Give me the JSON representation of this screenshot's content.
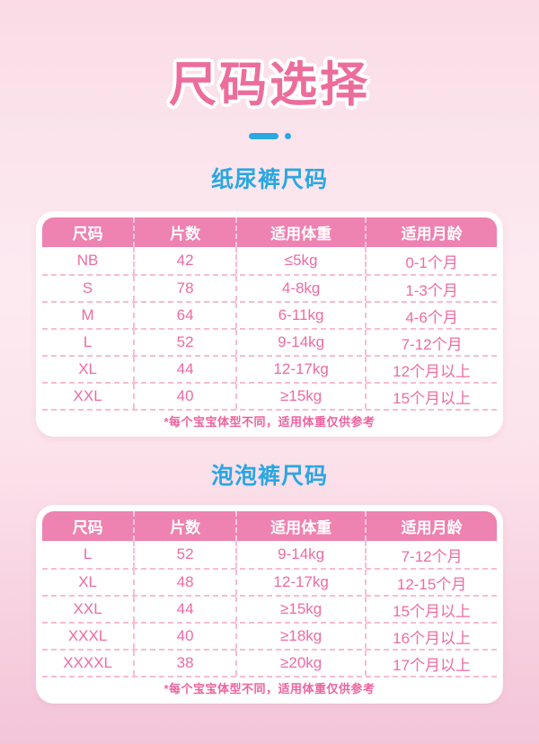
{
  "page": {
    "title": "尺码选择"
  },
  "colors": {
    "title_pink": "#ec6d9c",
    "accent_blue": "#29a9e2",
    "table_header_pink": "#ee82b0",
    "table_text_pink": "#ee6ba3",
    "dashed_line_pink": "#f7bcd4",
    "background_top": "#fadbe6",
    "background_bottom": "#f3c5d8",
    "card_background": "#ffffff"
  },
  "sections": [
    {
      "heading": "纸尿裤尺码",
      "table": {
        "headers": [
          "尺码",
          "片数",
          "适用体重",
          "适用月龄"
        ],
        "rows": [
          [
            "NB",
            "42",
            "≤5kg",
            "0-1个月"
          ],
          [
            "S",
            "78",
            "4-8kg",
            "1-3个月"
          ],
          [
            "M",
            "64",
            "6-11kg",
            "4-6个月"
          ],
          [
            "L",
            "52",
            "9-14kg",
            "7-12个月"
          ],
          [
            "XL",
            "44",
            "12-17kg",
            "12个月以上"
          ],
          [
            "XXL",
            "40",
            "≥15kg",
            "15个月以上"
          ]
        ],
        "note": "*每个宝宝体型不同，适用体重仅供参考"
      }
    },
    {
      "heading": "泡泡裤尺码",
      "table": {
        "headers": [
          "尺码",
          "片数",
          "适用体重",
          "适用月龄"
        ],
        "rows": [
          [
            "L",
            "52",
            "9-14kg",
            "7-12个月"
          ],
          [
            "XL",
            "48",
            "12-17kg",
            "12-15个月"
          ],
          [
            "XXL",
            "44",
            "≥15kg",
            "15个月以上"
          ],
          [
            "XXXL",
            "40",
            "≥18kg",
            "16个月以上"
          ],
          [
            "XXXXL",
            "38",
            "≥20kg",
            "17个月以上"
          ]
        ],
        "note": "*每个宝宝体型不同，适用体重仅供参考"
      }
    }
  ]
}
